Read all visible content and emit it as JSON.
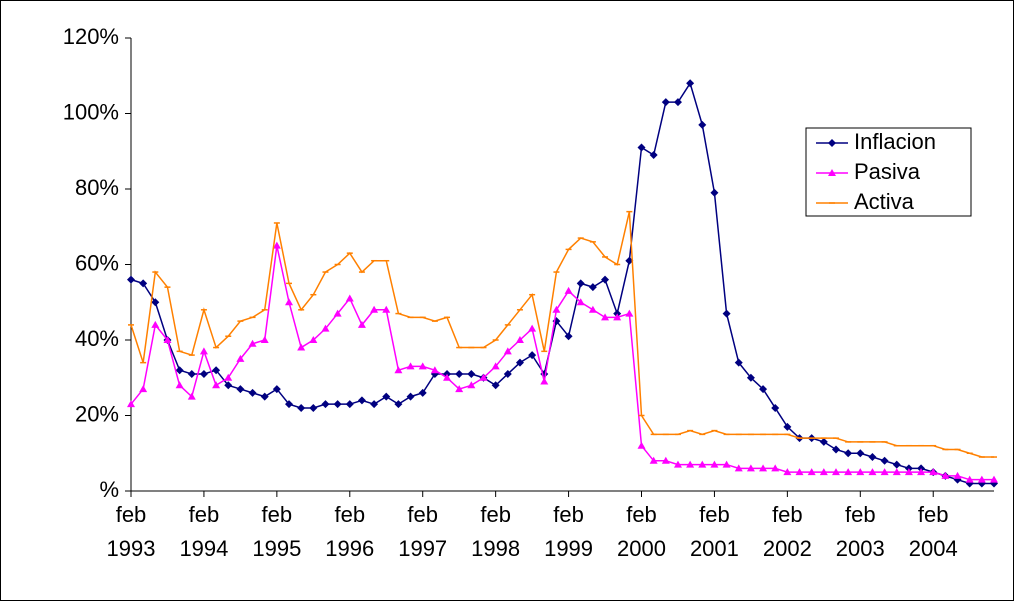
{
  "chart_data": {
    "type": "line",
    "categories": [
      "feb 1993",
      null,
      null,
      null,
      null,
      null,
      "feb 1994",
      null,
      null,
      null,
      null,
      null,
      "feb 1995",
      null,
      null,
      null,
      null,
      null,
      "feb 1996",
      null,
      null,
      null,
      null,
      null,
      "feb 1997",
      null,
      null,
      null,
      null,
      null,
      "feb 1998",
      null,
      null,
      null,
      null,
      null,
      "feb 1999",
      null,
      null,
      null,
      null,
      null,
      "feb 2000",
      null,
      null,
      null,
      null,
      null,
      "feb 2001",
      null,
      null,
      null,
      null,
      null,
      "feb 2002",
      null,
      null,
      null,
      null,
      null,
      "feb 2003",
      null,
      null,
      null,
      null,
      null,
      "feb 2004",
      null,
      null,
      null,
      null,
      null
    ],
    "series": [
      {
        "name": "Inflacion",
        "color": "#000080",
        "values": [
          56,
          55,
          50,
          40,
          32,
          31,
          31,
          32,
          28,
          27,
          26,
          25,
          27,
          23,
          22,
          22,
          23,
          23,
          23,
          24,
          23,
          25,
          23,
          25,
          26,
          31,
          31,
          31,
          31,
          30,
          28,
          31,
          34,
          36,
          31,
          45,
          41,
          55,
          54,
          56,
          47,
          61,
          91,
          89,
          103,
          103,
          108,
          97,
          79,
          47,
          34,
          30,
          27,
          22,
          17,
          14,
          14,
          13,
          11,
          10,
          10,
          9,
          8,
          7,
          6,
          6,
          5,
          4,
          3,
          2,
          2,
          2
        ]
      },
      {
        "name": "Pasiva",
        "color": "#ff00ff",
        "values": [
          23,
          27,
          44,
          40,
          28,
          25,
          37,
          28,
          30,
          35,
          39,
          40,
          65,
          50,
          38,
          40,
          43,
          47,
          51,
          44,
          48,
          48,
          32,
          33,
          33,
          32,
          30,
          27,
          28,
          30,
          33,
          37,
          40,
          43,
          29,
          48,
          53,
          50,
          48,
          46,
          46,
          47,
          12,
          8,
          8,
          7,
          7,
          7,
          7,
          7,
          6,
          6,
          6,
          6,
          5,
          5,
          5,
          5,
          5,
          5,
          5,
          5,
          5,
          5,
          5,
          5,
          5,
          4,
          4,
          3,
          3,
          3
        ]
      },
      {
        "name": "Activa",
        "color": "#ff8000",
        "values": [
          44,
          34,
          58,
          54,
          37,
          36,
          48,
          38,
          41,
          45,
          46,
          48,
          71,
          55,
          48,
          52,
          58,
          60,
          63,
          58,
          61,
          61,
          47,
          46,
          46,
          45,
          46,
          38,
          38,
          38,
          40,
          44,
          48,
          52,
          37,
          58,
          64,
          67,
          66,
          62,
          60,
          74,
          20,
          15,
          15,
          15,
          16,
          15,
          16,
          15,
          15,
          15,
          15,
          15,
          15,
          14,
          14,
          14,
          14,
          13,
          13,
          13,
          13,
          12,
          12,
          12,
          12,
          11,
          11,
          10,
          9,
          9
        ]
      }
    ],
    "ylim": [
      0,
      120
    ],
    "yticks": [
      {
        "value": 0,
        "label": "%"
      },
      {
        "value": 20,
        "label": "20%"
      },
      {
        "value": 40,
        "label": "40%"
      },
      {
        "value": 60,
        "label": "60%"
      },
      {
        "value": 80,
        "label": "80%"
      },
      {
        "value": 100,
        "label": "100%"
      },
      {
        "value": 120,
        "label": "120%"
      }
    ],
    "legend": "upper right"
  }
}
